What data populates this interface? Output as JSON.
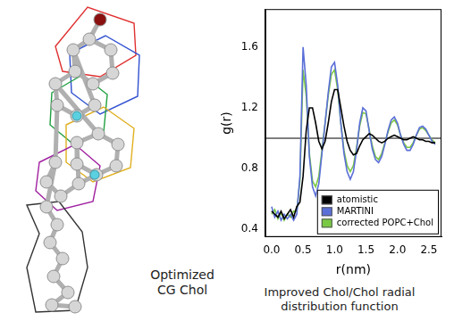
{
  "chart_data": {
    "type": "line",
    "caption": "Improved Chol/Chol radial distribution function",
    "x_label": "r(nm)",
    "y_label": "g(r)",
    "x": [
      0,
      0.05,
      0.1,
      0.15,
      0.2,
      0.25,
      0.3,
      0.35,
      0.4,
      0.45,
      0.5,
      0.55,
      0.6,
      0.65,
      0.7,
      0.75,
      0.8,
      0.85,
      0.9,
      0.95,
      1.0,
      1.05,
      1.1,
      1.15,
      1.2,
      1.25,
      1.3,
      1.35,
      1.4,
      1.45,
      1.5,
      1.55,
      1.6,
      1.65,
      1.7,
      1.75,
      1.8,
      1.85,
      1.9,
      1.95,
      2.0,
      2.05,
      2.1,
      2.15,
      2.2,
      2.25,
      2.3,
      2.35,
      2.4,
      2.45,
      2.5,
      2.55,
      2.6
    ],
    "series": [
      {
        "name": "atomistic",
        "color": "#000000",
        "values": [
          0.52,
          0.5,
          0.48,
          0.52,
          0.47,
          0.5,
          0.53,
          0.48,
          0.55,
          0.58,
          0.75,
          1.05,
          1.2,
          1.2,
          1.1,
          0.98,
          0.93,
          0.98,
          1.1,
          1.24,
          1.32,
          1.32,
          1.2,
          1.08,
          0.98,
          0.92,
          0.89,
          0.9,
          0.95,
          0.99,
          1.01,
          1.03,
          1.02,
          1.0,
          0.98,
          0.97,
          0.98,
          1.0,
          1.01,
          1.02,
          1.01,
          1.0,
          0.99,
          0.99,
          1.0,
          1.01,
          1.0,
          0.99,
          0.99,
          0.98,
          0.98,
          0.97,
          0.97
        ]
      },
      {
        "name": "MARTINI",
        "color": "#5b6fd8",
        "values": [
          0.55,
          0.48,
          0.52,
          0.46,
          0.5,
          0.47,
          0.5,
          0.46,
          0.5,
          0.75,
          1.6,
          1.35,
          0.88,
          0.68,
          0.62,
          0.7,
          0.9,
          1.1,
          1.3,
          1.47,
          1.5,
          1.35,
          1.1,
          0.9,
          0.78,
          0.73,
          0.78,
          0.92,
          1.1,
          1.2,
          1.18,
          1.05,
          0.93,
          0.86,
          0.84,
          0.88,
          0.96,
          1.05,
          1.12,
          1.14,
          1.1,
          1.02,
          0.96,
          0.92,
          0.92,
          0.96,
          1.02,
          1.07,
          1.08,
          1.06,
          1.02,
          0.98,
          0.96
        ]
      },
      {
        "name": "corrected POPC+Chol",
        "color": "#7ac943",
        "values": [
          0.5,
          0.53,
          0.47,
          0.51,
          0.46,
          0.5,
          0.48,
          0.52,
          0.52,
          0.72,
          1.45,
          1.28,
          0.9,
          0.72,
          0.68,
          0.75,
          0.92,
          1.1,
          1.28,
          1.42,
          1.45,
          1.32,
          1.1,
          0.92,
          0.82,
          0.78,
          0.82,
          0.94,
          1.08,
          1.17,
          1.16,
          1.06,
          0.95,
          0.88,
          0.86,
          0.9,
          0.97,
          1.04,
          1.1,
          1.12,
          1.09,
          1.02,
          0.97,
          0.94,
          0.94,
          0.97,
          1.02,
          1.06,
          1.07,
          1.05,
          1.02,
          0.99,
          0.97
        ]
      }
    ],
    "xlim": [
      -0.1,
      2.7
    ],
    "xticks": [
      {
        "value": 0,
        "label": "0.0"
      },
      0.5,
      {
        "value": 1,
        "label": "1.0"
      },
      1.5,
      {
        "value": 2,
        "label": "2.0"
      },
      2.5
    ],
    "ylim": [
      0.35,
      1.85
    ],
    "yticks": [
      0.4,
      0.8,
      1.2,
      1.6
    ],
    "hline": 1,
    "grid": false,
    "legend": "bottom right"
  },
  "diagram": {
    "label": "Optimized CG Chol"
  }
}
